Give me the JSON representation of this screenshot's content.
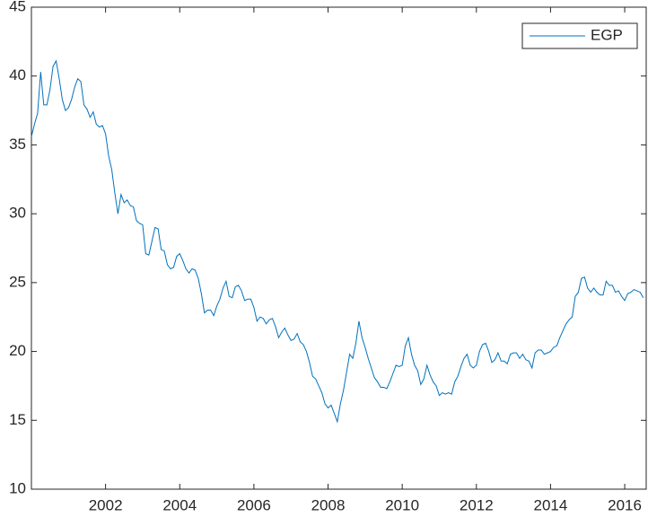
{
  "chart_data": {
    "type": "line",
    "x": [
      2000,
      2000.083,
      2000.167,
      2000.25,
      2000.333,
      2000.417,
      2000.5,
      2000.583,
      2000.667,
      2000.75,
      2000.833,
      2000.917,
      2001,
      2001.083,
      2001.167,
      2001.25,
      2001.333,
      2001.417,
      2001.5,
      2001.583,
      2001.667,
      2001.75,
      2001.833,
      2001.917,
      2002,
      2002.083,
      2002.167,
      2002.25,
      2002.333,
      2002.417,
      2002.5,
      2002.583,
      2002.667,
      2002.75,
      2002.833,
      2002.917,
      2003,
      2003.083,
      2003.167,
      2003.25,
      2003.333,
      2003.417,
      2003.5,
      2003.583,
      2003.667,
      2003.75,
      2003.833,
      2003.917,
      2004,
      2004.083,
      2004.167,
      2004.25,
      2004.333,
      2004.417,
      2004.5,
      2004.583,
      2004.667,
      2004.75,
      2004.833,
      2004.917,
      2005,
      2005.083,
      2005.167,
      2005.25,
      2005.333,
      2005.417,
      2005.5,
      2005.583,
      2005.667,
      2005.75,
      2005.833,
      2005.917,
      2006,
      2006.083,
      2006.167,
      2006.25,
      2006.333,
      2006.417,
      2006.5,
      2006.583,
      2006.667,
      2006.75,
      2006.833,
      2006.917,
      2007,
      2007.083,
      2007.167,
      2007.25,
      2007.333,
      2007.417,
      2007.5,
      2007.583,
      2007.667,
      2007.75,
      2007.833,
      2007.917,
      2008,
      2008.083,
      2008.167,
      2008.25,
      2008.333,
      2008.417,
      2008.5,
      2008.583,
      2008.667,
      2008.75,
      2008.833,
      2008.917,
      2009,
      2009.083,
      2009.167,
      2009.25,
      2009.333,
      2009.417,
      2009.5,
      2009.583,
      2009.667,
      2009.75,
      2009.833,
      2009.917,
      2010,
      2010.083,
      2010.167,
      2010.25,
      2010.333,
      2010.417,
      2010.5,
      2010.583,
      2010.667,
      2010.75,
      2010.833,
      2010.917,
      2011,
      2011.083,
      2011.167,
      2011.25,
      2011.333,
      2011.417,
      2011.5,
      2011.583,
      2011.667,
      2011.75,
      2011.833,
      2011.917,
      2012,
      2012.083,
      2012.167,
      2012.25,
      2012.333,
      2012.417,
      2012.5,
      2012.583,
      2012.667,
      2012.75,
      2012.833,
      2012.917,
      2013,
      2013.083,
      2013.167,
      2013.25,
      2013.333,
      2013.417,
      2013.5,
      2013.583,
      2013.667,
      2013.75,
      2013.833,
      2013.917,
      2014,
      2014.083,
      2014.167,
      2014.25,
      2014.333,
      2014.417,
      2014.5,
      2014.583,
      2014.667,
      2014.75,
      2014.833,
      2014.917,
      2015,
      2015.083,
      2015.167,
      2015.25,
      2015.333,
      2015.417,
      2015.5,
      2015.583,
      2015.667,
      2015.75,
      2015.833,
      2015.917,
      2016,
      2016.083,
      2016.167,
      2016.25,
      2016.333,
      2016.417,
      2016.5
    ],
    "series": [
      {
        "name": "EGP",
        "color": "#0072bd",
        "values": [
          35.6,
          36.5,
          37.3,
          40.3,
          37.9,
          37.9,
          39.0,
          40.7,
          41.1,
          39.8,
          38.3,
          37.5,
          37.7,
          38.3,
          39.2,
          39.8,
          39.6,
          37.9,
          37.6,
          37.0,
          37.4,
          36.5,
          36.3,
          36.4,
          35.8,
          34.2,
          33.2,
          31.5,
          30.0,
          31.4,
          30.8,
          31.0,
          30.6,
          30.5,
          29.5,
          29.3,
          29.2,
          27.1,
          27.0,
          28.0,
          29.0,
          28.9,
          27.4,
          27.3,
          26.3,
          26.0,
          26.1,
          26.9,
          27.1,
          26.6,
          26.0,
          25.7,
          26.0,
          25.9,
          25.3,
          24.2,
          22.8,
          23.0,
          23.0,
          22.6,
          23.3,
          23.8,
          24.6,
          25.1,
          24.0,
          23.9,
          24.7,
          24.8,
          24.4,
          23.7,
          23.8,
          23.8,
          23.2,
          22.2,
          22.5,
          22.4,
          22.0,
          22.3,
          22.4,
          21.8,
          21.0,
          21.4,
          21.7,
          21.2,
          20.8,
          20.9,
          21.3,
          20.7,
          20.5,
          20.0,
          19.2,
          18.2,
          18.0,
          17.5,
          17.0,
          16.2,
          15.9,
          16.1,
          15.5,
          14.9,
          16.2,
          17.2,
          18.5,
          19.8,
          19.5,
          20.6,
          22.2,
          21.0,
          20.3,
          19.5,
          18.8,
          18.1,
          17.8,
          17.4,
          17.4,
          17.3,
          17.8,
          18.4,
          19.0,
          18.9,
          19.0,
          20.4,
          21.0,
          19.8,
          19.0,
          18.6,
          17.6,
          18.0,
          19.0,
          18.3,
          17.8,
          17.5,
          16.8,
          17.0,
          16.9,
          17.0,
          16.9,
          17.8,
          18.2,
          18.9,
          19.5,
          19.8,
          19.0,
          18.8,
          19.0,
          20.0,
          20.5,
          20.6,
          20.0,
          19.2,
          19.4,
          19.9,
          19.3,
          19.3,
          19.1,
          19.8,
          19.9,
          19.9,
          19.5,
          19.8,
          19.4,
          19.3,
          18.8,
          19.9,
          20.1,
          20.1,
          19.8,
          19.9,
          20.0,
          20.3,
          20.4,
          21.0,
          21.5,
          22.0,
          22.3,
          22.5,
          24.0,
          24.3,
          25.3,
          25.4,
          24.6,
          24.3,
          24.6,
          24.3,
          24.1,
          24.1,
          25.1,
          24.8,
          24.8,
          24.3,
          24.4,
          24.0,
          23.7,
          24.2,
          24.3,
          24.5,
          24.4,
          24.3,
          23.9
        ]
      }
    ],
    "xlim": [
      2000,
      2016.58
    ],
    "xticks": [
      2002,
      2004,
      2006,
      2008,
      2010,
      2012,
      2014,
      2016
    ],
    "ylim": [
      10,
      45
    ],
    "yticks": [
      10,
      15,
      20,
      25,
      30,
      35,
      40,
      45
    ],
    "legend": "upper right",
    "grid": false
  }
}
